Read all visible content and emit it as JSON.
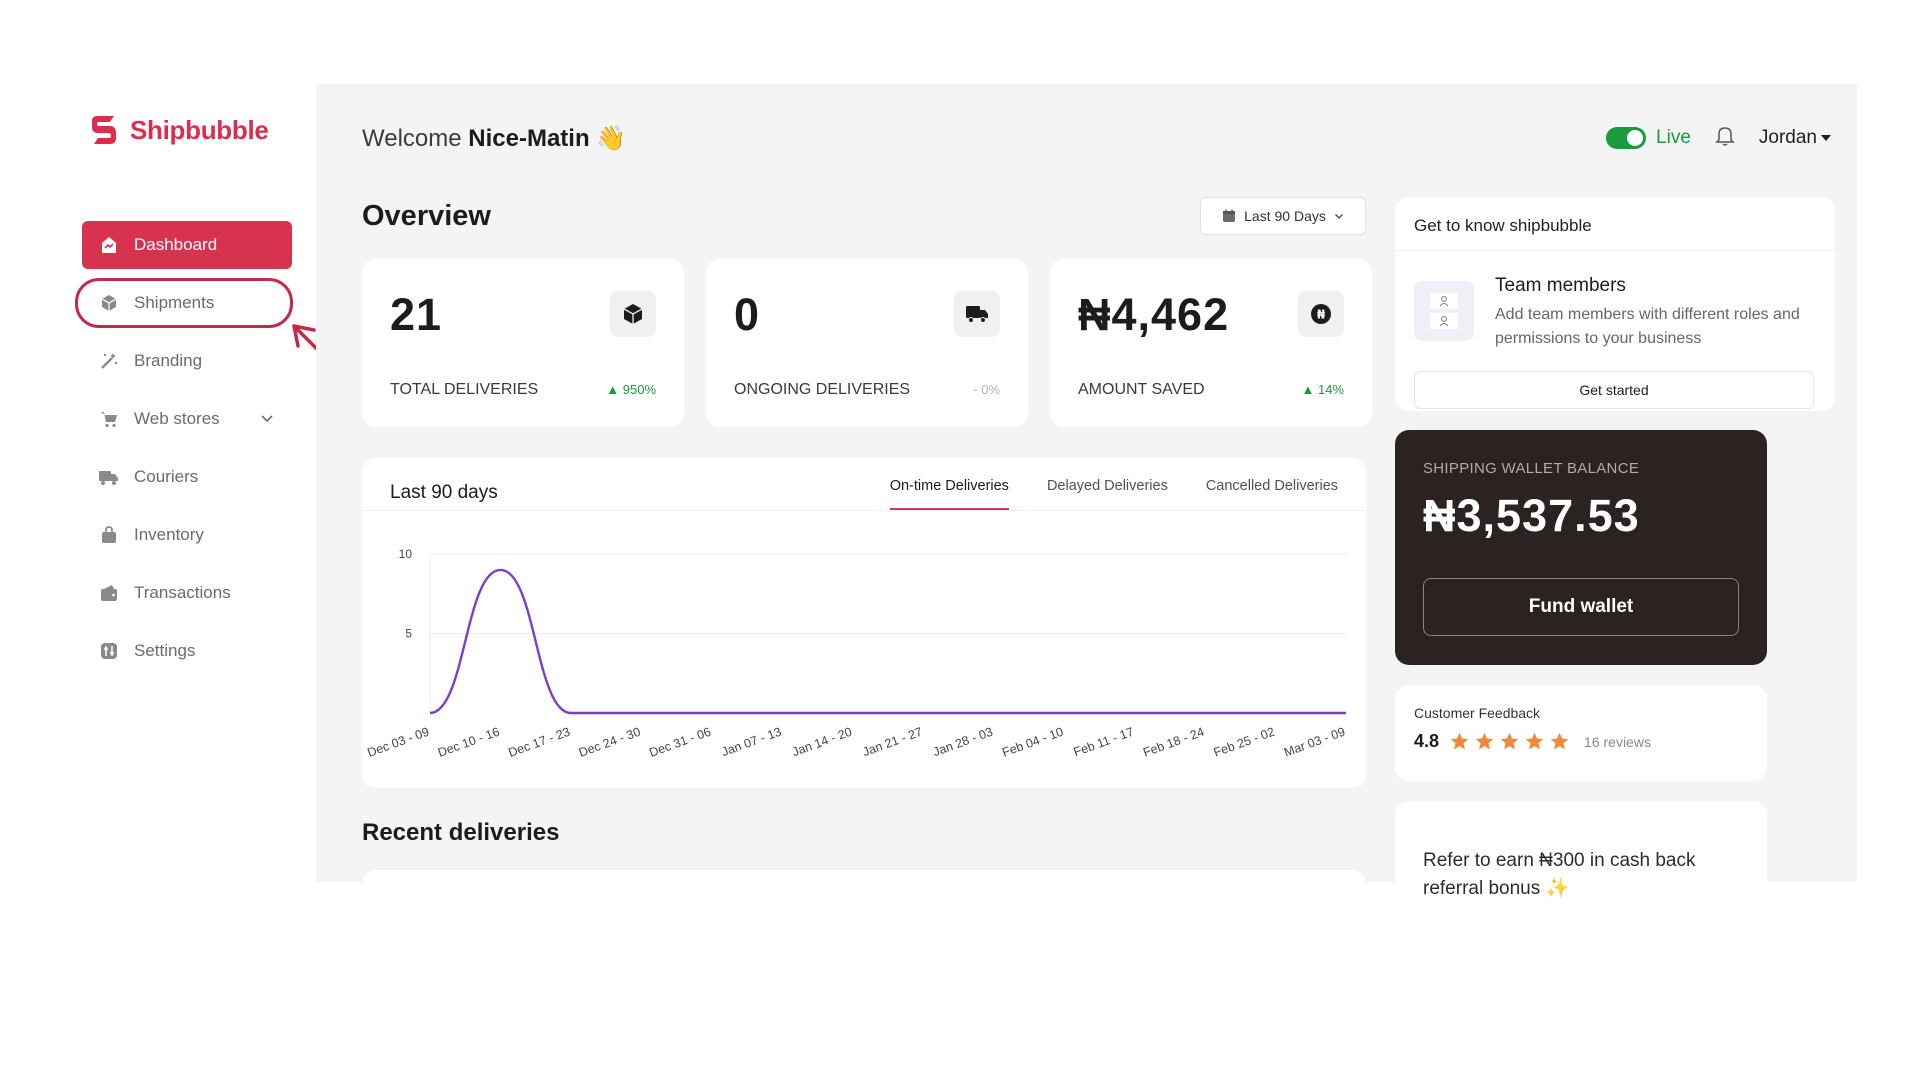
{
  "brand": {
    "name": "Shipbubble",
    "color": "#dd2c4e"
  },
  "sidebar": {
    "items": [
      {
        "label": "Dashboard",
        "icon": "dashboard-icon",
        "active": true
      },
      {
        "label": "Shipments",
        "icon": "box-icon",
        "active": false
      },
      {
        "label": "Branding",
        "icon": "magic-wand-icon",
        "active": false
      },
      {
        "label": "Web stores",
        "icon": "cart-icon",
        "active": false,
        "has_dropdown": true
      },
      {
        "label": "Couriers",
        "icon": "truck-icon",
        "active": false
      },
      {
        "label": "Inventory",
        "icon": "bag-icon",
        "active": false
      },
      {
        "label": "Transactions",
        "icon": "wallet-icon",
        "active": false
      },
      {
        "label": "Settings",
        "icon": "settings-icon",
        "active": false
      }
    ]
  },
  "header": {
    "welcome_prefix": "Welcome",
    "user_display_name": "Nice-Matin",
    "wave_emoji": "👋",
    "live_label": "Live",
    "live_on": true,
    "account_name": "Jordan"
  },
  "overview": {
    "title": "Overview",
    "range_label": "Last 90 Days",
    "stats": [
      {
        "value": "21",
        "label": "TOTAL DELIVERIES",
        "change": "950%",
        "trend": "up",
        "icon": "box-icon"
      },
      {
        "value": "0",
        "label": "ONGOING DELIVERIES",
        "change": "- 0%",
        "trend": "neutral",
        "icon": "delivery-truck-icon"
      },
      {
        "value": "₦4,462",
        "label": "AMOUNT SAVED",
        "change": "14%",
        "trend": "up",
        "icon": "naira-coin-icon"
      }
    ]
  },
  "chart_card": {
    "title": "Last 90 days",
    "tabs": [
      "On-time Deliveries",
      "Delayed Deliveries",
      "Cancelled Deliveries"
    ],
    "active_tab": 0
  },
  "chart_data": {
    "type": "line",
    "title": "",
    "xlabel": "",
    "ylabel": "",
    "categories": [
      "Dec 03 - 09",
      "Dec 10 - 16",
      "Dec 17 - 23",
      "Dec 24 - 30",
      "Dec 31 - 06",
      "Jan 07 - 13",
      "Jan 14 - 20",
      "Jan 21 - 27",
      "Jan 28 - 03",
      "Feb 04 - 10",
      "Feb 11 - 17",
      "Feb 18 - 24",
      "Feb 25 - 02",
      "Mar 03 - 09"
    ],
    "values": [
      0,
      9,
      0,
      0,
      0,
      0,
      0,
      0,
      0,
      0,
      0,
      0,
      0,
      0
    ],
    "yticks": [
      5,
      10
    ],
    "ylim": [
      0,
      10
    ],
    "grid": true,
    "smooth": true,
    "line_color": "#7c3fc6"
  },
  "recent": {
    "title": "Recent deliveries"
  },
  "know": {
    "title": "Get to know shipbubble",
    "item_title": "Team members",
    "item_desc": "Add team members with different roles and permissions to your business",
    "cta": "Get started"
  },
  "wallet": {
    "label": "SHIPPING WALLET BALANCE",
    "balance": "₦3,537.53",
    "cta": "Fund wallet"
  },
  "feedback": {
    "title": "Customer Feedback",
    "score": "4.8",
    "stars": 5,
    "reviews": "16 reviews",
    "star_color": "#ef8a3c"
  },
  "refer": {
    "text": "Refer to earn ₦300 in cash back referral bonus ✨"
  }
}
